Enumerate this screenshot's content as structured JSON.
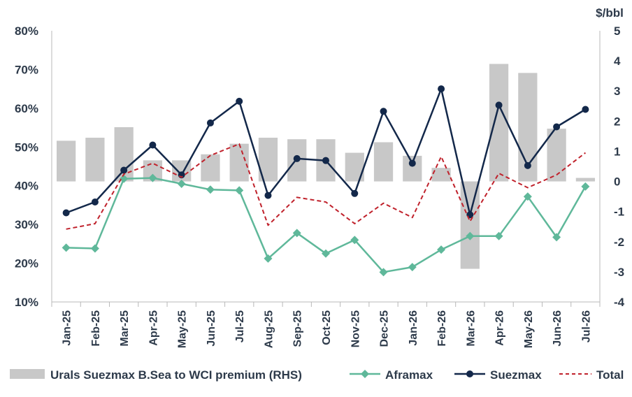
{
  "chart_data": {
    "type": "bar+line",
    "categories": [
      "Jan-25",
      "Feb-25",
      "Mar-25",
      "Apr-25",
      "May-25",
      "Jun-25",
      "Jul-25",
      "Aug-25",
      "Sep-25",
      "Oct-25",
      "Nov-25",
      "Dec-25",
      "Jan-26",
      "Feb-26",
      "Mar-26",
      "Apr-26",
      "May-26",
      "Jun-26",
      "Jul-26"
    ],
    "y_left": {
      "ticks": [
        "10%",
        "20%",
        "30%",
        "40%",
        "50%",
        "60%",
        "70%",
        "80%"
      ],
      "ylim": [
        10,
        80
      ],
      "unit": "%"
    },
    "y_right": {
      "label": "$/bbl",
      "ticks": [
        "-4",
        "-3",
        "-2",
        "-1",
        "0",
        "1",
        "2",
        "3",
        "4",
        "5"
      ],
      "ylim": [
        -4,
        5
      ]
    },
    "bars": {
      "name": "Urals Suezmax B.Sea to WCI premium (RHS)",
      "axis": "right",
      "color": "#c8c8c8",
      "values": [
        1.35,
        1.45,
        1.8,
        0.7,
        0.7,
        0.9,
        1.25,
        1.45,
        1.4,
        1.4,
        0.95,
        1.3,
        0.85,
        0.45,
        -2.9,
        3.9,
        3.6,
        1.75,
        0.0
      ]
    },
    "series": [
      {
        "name": "Aframax",
        "axis": "left",
        "color": "#5fb89a",
        "marker": "diamond",
        "values": [
          24,
          23.8,
          41.8,
          42,
          40.5,
          39,
          38.8,
          21.2,
          27.8,
          22.5,
          26,
          17.7,
          19,
          23.5,
          27,
          27,
          37.2,
          26.7,
          39.8
        ]
      },
      {
        "name": "Suezmax",
        "axis": "left",
        "color": "#13284a",
        "marker": "circle",
        "values": [
          33,
          35.8,
          44,
          50.5,
          42.8,
          56.2,
          61.8,
          37.5,
          47,
          46.5,
          38,
          59.2,
          45.8,
          65,
          32.5,
          60.8,
          45.2,
          55.2,
          59.7
        ]
      },
      {
        "name": "Total",
        "axis": "left",
        "color": "#c0222c",
        "dash": true,
        "values": [
          28.8,
          30.2,
          43,
          45.8,
          42.2,
          47.8,
          50.8,
          29.8,
          37,
          35.8,
          30.2,
          35.5,
          31.8,
          47.5,
          30.8,
          43.2,
          39.5,
          42.8,
          48.5
        ]
      }
    ],
    "grid": false,
    "legend_position": "bottom"
  },
  "legend": {
    "bars_label": "Urals Suezmax B.Sea to WCI premium (RHS)",
    "aframax_label": "Aframax",
    "suezmax_label": "Suezmax",
    "total_label": "Total"
  }
}
